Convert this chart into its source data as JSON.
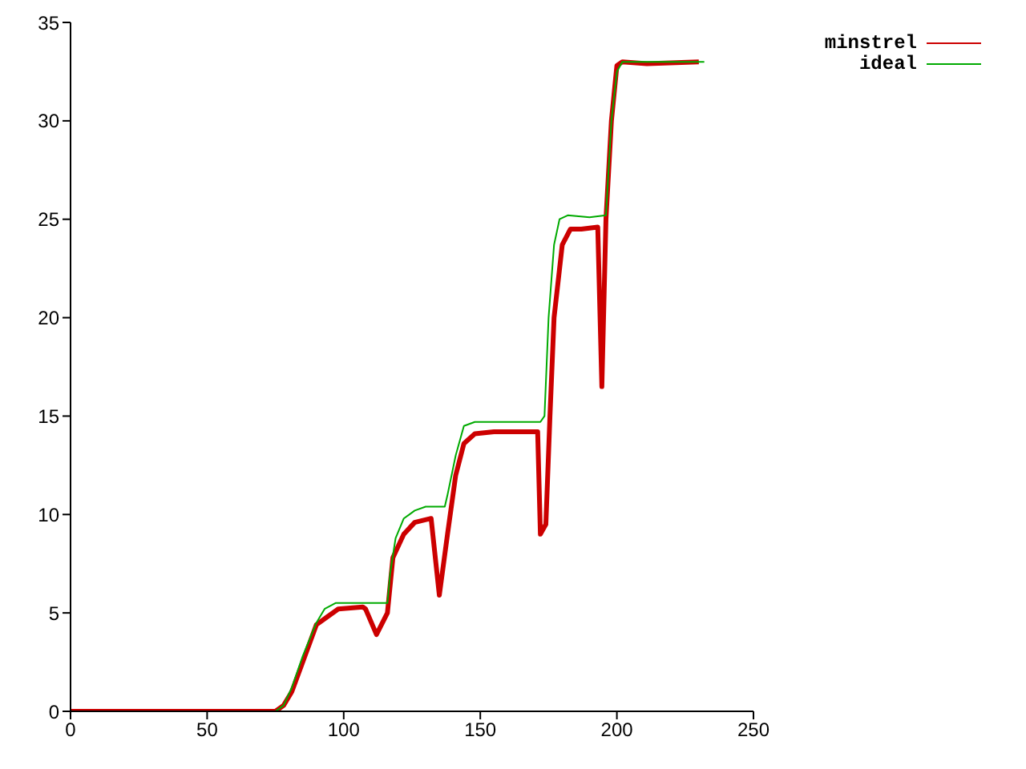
{
  "chart_data": {
    "type": "line",
    "xlim": [
      0,
      250
    ],
    "xticks": [
      0,
      50,
      100,
      150,
      200,
      250
    ],
    "ylim": [
      0,
      35
    ],
    "yticks": [
      0,
      5,
      10,
      15,
      20,
      25,
      30,
      35
    ],
    "grid": false,
    "legend": "top right",
    "marker": "none",
    "line_style": "solid",
    "series": [
      {
        "name": "minstrel",
        "color": "#cc0000",
        "x": [
          0,
          75,
          78,
          81,
          85,
          90,
          94,
          98,
          107,
          108,
          112,
          116,
          118,
          122,
          126,
          132,
          135,
          138,
          141,
          144,
          148,
          155,
          171,
          172,
          174,
          175.5,
          177,
          180,
          183,
          187,
          193,
          194.5,
          196,
          198,
          200,
          202,
          211,
          230
        ],
        "values": [
          0,
          0,
          0.3,
          1,
          2.5,
          4.4,
          4.8,
          5.2,
          5.3,
          5.2,
          3.9,
          5,
          7.8,
          9,
          9.6,
          9.8,
          5.9,
          9,
          12,
          13.6,
          14.1,
          14.2,
          14.2,
          9,
          9.5,
          15,
          20,
          23.7,
          24.5,
          24.5,
          24.6,
          16.5,
          25,
          30,
          32.8,
          33,
          32.9,
          33
        ]
      },
      {
        "name": "ideal",
        "color": "#00aa00",
        "x": [
          0,
          75,
          78,
          81,
          85,
          90,
          93,
          97,
          116,
          117,
          119,
          122,
          126,
          130,
          137,
          138,
          141,
          144,
          148,
          172,
          173.5,
          175,
          177,
          179,
          182,
          190,
          196,
          198,
          200,
          202,
          232
        ],
        "values": [
          0,
          0,
          0.3,
          1.2,
          2.8,
          4.5,
          5.2,
          5.5,
          5.5,
          7,
          8.8,
          9.8,
          10.2,
          10.4,
          10.4,
          11,
          13,
          14.5,
          14.7,
          14.7,
          15,
          20,
          23.7,
          25,
          25.2,
          25.1,
          25.2,
          30,
          32.5,
          33,
          33
        ]
      }
    ]
  }
}
